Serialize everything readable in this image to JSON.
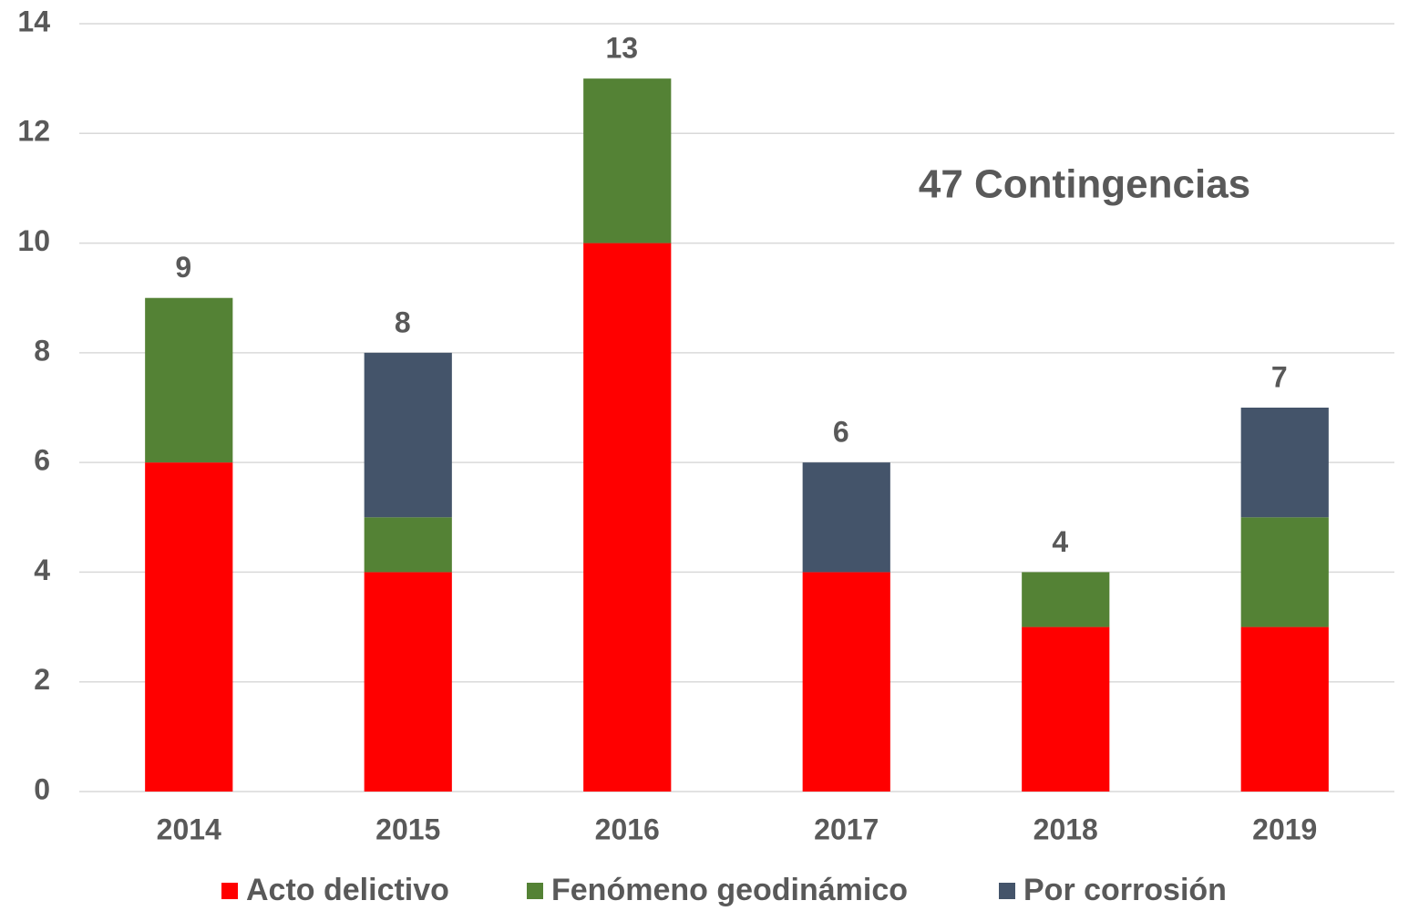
{
  "chart_data": {
    "type": "stacked_bar",
    "categories": [
      "2014",
      "2015",
      "2016",
      "2017",
      "2018",
      "2019"
    ],
    "series": [
      {
        "name": "Acto delictivo",
        "color": "#ff0000",
        "values": [
          6,
          4,
          10,
          4,
          3,
          3
        ]
      },
      {
        "name": "Fenómeno geodinámico",
        "color": "#548235",
        "values": [
          3,
          1,
          3,
          0,
          1,
          2
        ]
      },
      {
        "name": "Por corrosión",
        "color": "#44546a",
        "values": [
          0,
          3,
          0,
          2,
          0,
          2
        ]
      }
    ],
    "totals": [
      9,
      8,
      13,
      6,
      4,
      7
    ],
    "annotation": "47 Contingencias",
    "ylim": [
      0,
      14
    ],
    "yticks": [
      0,
      2,
      4,
      6,
      8,
      10,
      12,
      14
    ],
    "grid": true,
    "legend": "bottom"
  }
}
